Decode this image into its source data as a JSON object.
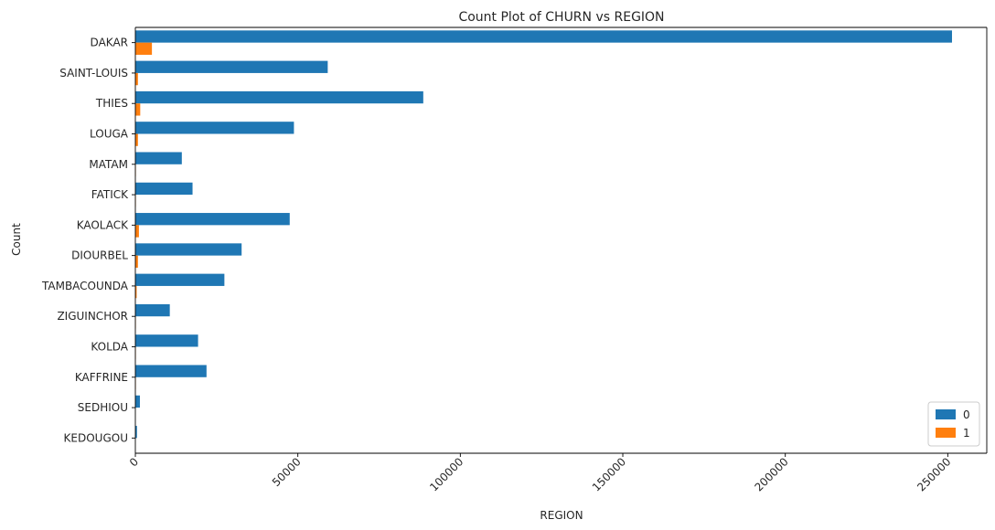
{
  "chart_data": {
    "type": "bar",
    "orientation": "horizontal",
    "title": "Count Plot of CHURN vs REGION",
    "xlabel": "REGION",
    "ylabel": "Count",
    "categories": [
      "DAKAR",
      "SAINT-LOUIS",
      "THIES",
      "LOUGA",
      "MATAM",
      "FATICK",
      "KAOLACK",
      "DIOURBEL",
      "TAMBACOUNDA",
      "ZIGUINCHOR",
      "KOLDA",
      "KAFFRINE",
      "SEDHIOU",
      "KEDOUGOU"
    ],
    "series": [
      {
        "name": "0",
        "color": "#1f77b4",
        "values": [
          251300,
          59200,
          88600,
          48800,
          14300,
          17600,
          47500,
          32700,
          27400,
          10600,
          19300,
          21900,
          1400,
          500
        ]
      },
      {
        "name": "1",
        "color": "#ff7f0e",
        "values": [
          5100,
          800,
          1500,
          800,
          150,
          150,
          1100,
          800,
          400,
          150,
          150,
          150,
          30,
          20
        ]
      }
    ],
    "xlim": [
      0,
      262000
    ],
    "xticks": [
      0,
      50000,
      100000,
      150000,
      200000,
      250000
    ],
    "xtick_rotation": 45,
    "legend_position": "lower right",
    "grid": false
  }
}
